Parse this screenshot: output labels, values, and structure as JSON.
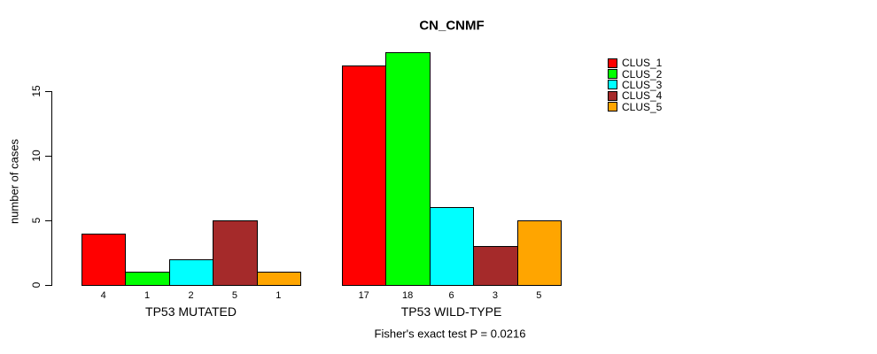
{
  "chart_data": {
    "type": "bar",
    "title": "CN_CNMF",
    "ylabel": "number of cases",
    "xlabel": "",
    "yticks": [
      0,
      5,
      10,
      15
    ],
    "ylim": [
      0,
      18.4
    ],
    "grid": false,
    "legend_position": "top-right",
    "categories": [
      "TP53 MUTATED",
      "TP53 WILD-TYPE"
    ],
    "series": [
      {
        "name": "CLUS_1",
        "color": "#FF0000",
        "values": [
          4,
          17
        ]
      },
      {
        "name": "CLUS_2",
        "color": "#00FF00",
        "values": [
          1,
          18
        ]
      },
      {
        "name": "CLUS_3",
        "color": "#00FFFF",
        "values": [
          2,
          6
        ]
      },
      {
        "name": "CLUS_4",
        "color": "#A52A2A",
        "values": [
          5,
          3
        ]
      },
      {
        "name": "CLUS_5",
        "color": "#FFA500",
        "values": [
          1,
          5
        ]
      }
    ],
    "bar_value_labels": true,
    "annotation": "Fisher's exact test P = 0.0216"
  }
}
